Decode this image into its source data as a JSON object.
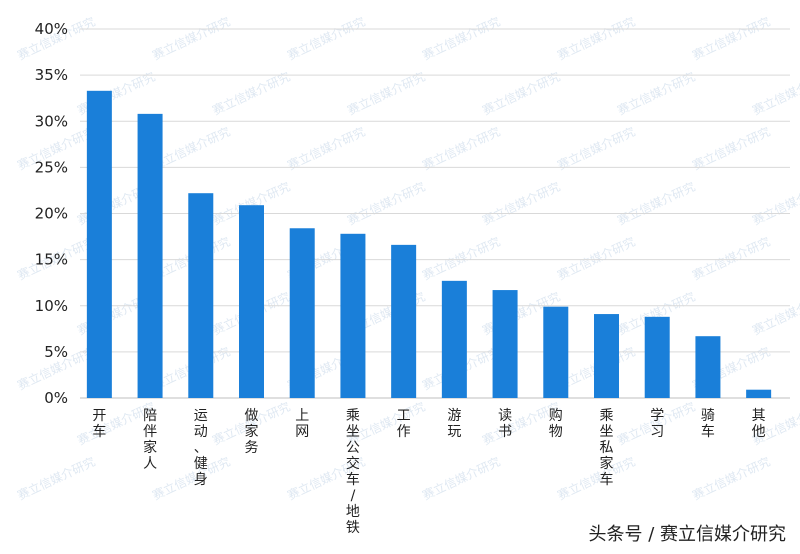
{
  "chart_data": {
    "type": "bar",
    "categories": [
      "开车",
      "陪伴家人",
      "运动、健身",
      "做家务",
      "上网",
      "乘坐公交车/地铁",
      "工作",
      "游玩",
      "读书",
      "购物",
      "乘坐私家车",
      "学习",
      "骑车",
      "其他"
    ],
    "values": [
      33.3,
      30.8,
      22.2,
      20.9,
      18.4,
      17.8,
      16.6,
      12.7,
      11.7,
      9.9,
      9.1,
      8.8,
      6.7,
      0.9
    ],
    "ylim": [
      0,
      40
    ],
    "yticks": [
      "0%",
      "5%",
      "10%",
      "15%",
      "20%",
      "25%",
      "30%",
      "35%",
      "40%"
    ],
    "grid": true,
    "bar_color": "#1a7fd9",
    "title": "",
    "xlabel": "",
    "ylabel": ""
  },
  "watermark": "赛立信媒介研究",
  "credit": "头条号 / 赛立信媒介研究"
}
